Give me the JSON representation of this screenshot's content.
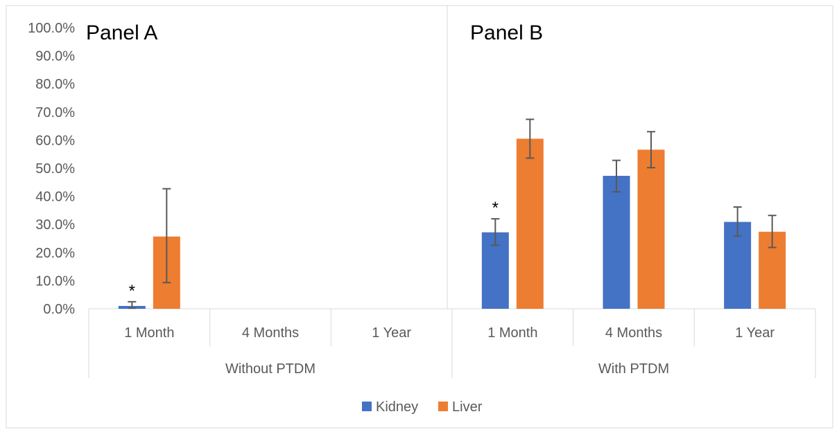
{
  "chart_data": {
    "type": "bar",
    "panel_labels": [
      "Panel A",
      "Panel B"
    ],
    "groups": [
      "Without PTDM",
      "With PTDM"
    ],
    "categories": [
      "1 Month",
      "4 Months",
      "1 Year",
      "1 Month",
      "4 Months",
      "1 Year"
    ],
    "category_group_index": [
      0,
      0,
      0,
      1,
      1,
      1
    ],
    "ylim": [
      0,
      100
    ],
    "y_ticks": [
      "0.0%",
      "10.0%",
      "20.0%",
      "30.0%",
      "40.0%",
      "50.0%",
      "60.0%",
      "70.0%",
      "80.0%",
      "90.0%",
      "100.0%"
    ],
    "series": [
      {
        "name": "Kidney",
        "color": "#4472C4",
        "values": [
          1.0,
          null,
          null,
          27.2,
          47.3,
          30.9
        ],
        "error_low": [
          0.2,
          null,
          null,
          22.6,
          41.6,
          25.9
        ],
        "error_high": [
          2.5,
          null,
          null,
          32.0,
          52.8,
          36.2
        ]
      },
      {
        "name": "Liver",
        "color": "#ED7D31",
        "values": [
          25.7,
          null,
          null,
          60.5,
          56.6,
          27.4
        ],
        "error_low": [
          9.3,
          null,
          null,
          53.6,
          50.2,
          21.8
        ],
        "error_high": [
          42.7,
          null,
          null,
          67.4,
          63.0,
          33.2
        ]
      }
    ],
    "annotations": [
      {
        "text": "*",
        "category_index": 0,
        "series_index": 0
      },
      {
        "text": "*",
        "category_index": 3,
        "series_index": 0
      }
    ],
    "legend_position": "bottom",
    "grid": false
  }
}
